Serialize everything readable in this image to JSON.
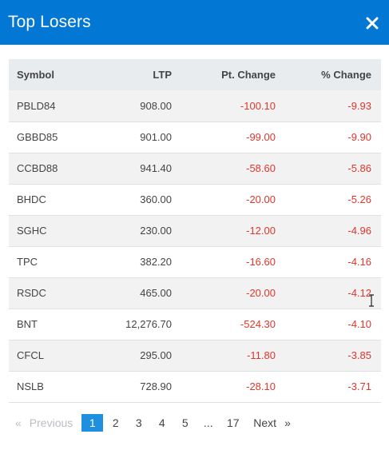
{
  "modal": {
    "title": "Top Losers",
    "close_glyph": "×"
  },
  "table": {
    "headers": {
      "symbol": "Symbol",
      "ltp": "LTP",
      "pt_change": "Pt. Change",
      "pct_change": "% Change"
    },
    "rows": [
      {
        "symbol": "PBLD84",
        "ltp": "908.00",
        "pt_change": "-100.10",
        "pct_change": "-9.93"
      },
      {
        "symbol": "GBBD85",
        "ltp": "901.00",
        "pt_change": "-99.00",
        "pct_change": "-9.90"
      },
      {
        "symbol": "CCBD88",
        "ltp": "941.40",
        "pt_change": "-58.60",
        "pct_change": "-5.86"
      },
      {
        "symbol": "BHDC",
        "ltp": "360.00",
        "pt_change": "-20.00",
        "pct_change": "-5.26"
      },
      {
        "symbol": "SGHC",
        "ltp": "230.00",
        "pt_change": "-12.00",
        "pct_change": "-4.96"
      },
      {
        "symbol": "TPC",
        "ltp": "382.20",
        "pt_change": "-16.60",
        "pct_change": "-4.16"
      },
      {
        "symbol": "RSDC",
        "ltp": "465.00",
        "pt_change": "-20.00",
        "pct_change": "-4.12"
      },
      {
        "symbol": "BNT",
        "ltp": "12,276.70",
        "pt_change": "-524.30",
        "pct_change": "-4.10"
      },
      {
        "symbol": "CFCL",
        "ltp": "295.00",
        "pt_change": "-11.80",
        "pct_change": "-3.85"
      },
      {
        "symbol": "NSLB",
        "ltp": "728.90",
        "pt_change": "-28.10",
        "pct_change": "-3.71"
      }
    ]
  },
  "pagination": {
    "prev_arrow": "«",
    "prev_label": "Previous",
    "pages": [
      "1",
      "2",
      "3",
      "4",
      "5"
    ],
    "ellipsis": "...",
    "last_page": "17",
    "next_label": "Next",
    "next_arrow": "»",
    "active_page": "1"
  },
  "colors": {
    "header_bg": "#0277d4",
    "negative": "#e0362b",
    "active_page": "#1f8fe0"
  },
  "icons": {
    "close": "close-icon",
    "cursor": "text-cursor-icon"
  }
}
